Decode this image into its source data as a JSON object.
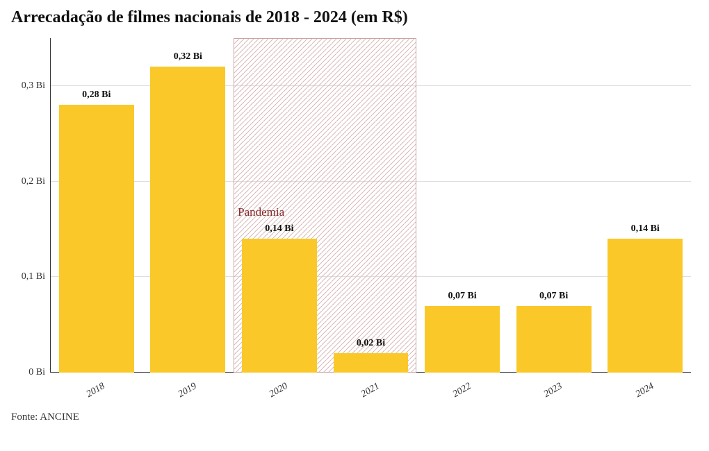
{
  "title": "Arrecadação de filmes nacionais de 2018 - 2024 (em R$)",
  "title_fontsize": 24,
  "title_weight": 700,
  "source": "Fonte: ANCINE",
  "source_fontsize": 15,
  "chart": {
    "type": "bar",
    "background_color": "#ffffff",
    "axis_color": "#333333",
    "grid_color": "#dedede",
    "bar_color": "#fac929",
    "bar_width_ratio": 0.82,
    "label_fontsize": 14,
    "label_weight": 700,
    "y": {
      "min": 0,
      "max": 0.35,
      "ticks": [
        0,
        0.1,
        0.2,
        0.3
      ],
      "tick_labels": [
        "0 Bi",
        "0,1 Bi",
        "0,2 Bi",
        "0,3 Bi"
      ],
      "tick_fontsize": 14
    },
    "x": {
      "categories": [
        "2018",
        "2019",
        "2020",
        "2021",
        "2022",
        "2023",
        "2024"
      ],
      "tick_fontsize": 14,
      "tick_rotation_deg": -30,
      "tick_font_style": "italic"
    },
    "data": [
      {
        "category": "2018",
        "value": 0.28,
        "label": "0,28 Bi"
      },
      {
        "category": "2019",
        "value": 0.32,
        "label": "0,32 Bi"
      },
      {
        "category": "2020",
        "value": 0.14,
        "label": "0,14 Bi"
      },
      {
        "category": "2021",
        "value": 0.02,
        "label": "0,02 Bi"
      },
      {
        "category": "2022",
        "value": 0.07,
        "label": "0,07 Bi"
      },
      {
        "category": "2023",
        "value": 0.07,
        "label": "0,07 Bi"
      },
      {
        "category": "2024",
        "value": 0.14,
        "label": "0,14 Bi"
      }
    ],
    "highlight_band": {
      "label": "Pandemia",
      "label_color": "#832a2a",
      "label_fontsize": 17,
      "start_index": 2,
      "end_index": 3,
      "border_color": "#caa4a4",
      "hatch_color": "#d7b7b7",
      "hatch_spacing": 7,
      "hatch_width": 1
    }
  }
}
